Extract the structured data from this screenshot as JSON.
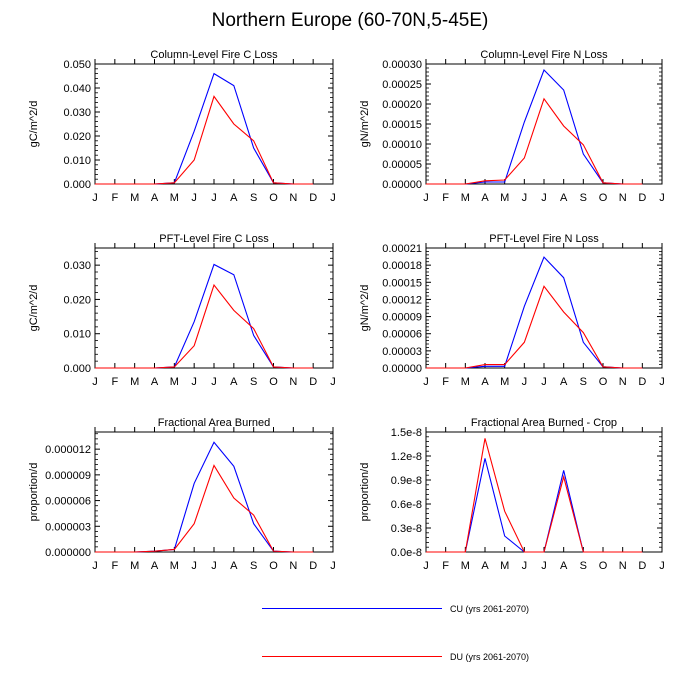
{
  "title": "Northern Europe (60-70N,5-45E)",
  "months": [
    "J",
    "F",
    "M",
    "A",
    "M",
    "J",
    "J",
    "A",
    "S",
    "O",
    "N",
    "D",
    "J"
  ],
  "colors": {
    "cu": "#0000ff",
    "du": "#ff0000"
  },
  "legend": [
    {
      "label": "CU (yrs 2061-2070)",
      "color": "#0000ff"
    },
    {
      "label": "DU (yrs 2061-2070)",
      "color": "#ff0000"
    }
  ],
  "chart_data": [
    {
      "type": "line",
      "title": "Column-Level Fire C Loss",
      "ylabel": "gC/m^2/d",
      "ylim": [
        0,
        0.05
      ],
      "yticks": [
        0,
        0.01,
        0.02,
        0.03,
        0.04,
        0.05
      ],
      "yticklabels": [
        "0.000",
        "0.010",
        "0.020",
        "0.030",
        "0.040",
        "0.050"
      ],
      "series": [
        {
          "name": "CU (yrs 2061-2070)",
          "values": [
            0,
            0,
            0,
            0,
            0.0005,
            0.022,
            0.046,
            0.041,
            0.015,
            0.0005,
            0,
            0
          ]
        },
        {
          "name": "DU (yrs 2061-2070)",
          "values": [
            0,
            0,
            0,
            0,
            0.0005,
            0.01,
            0.0365,
            0.025,
            0.018,
            0.0005,
            0,
            0
          ]
        }
      ]
    },
    {
      "type": "line",
      "title": "Column-Level Fire N Loss",
      "ylabel": "gN/m^2/d",
      "ylim": [
        0,
        0.0003
      ],
      "yticks": [
        0,
        5e-05,
        0.0001,
        0.00015,
        0.0002,
        0.00025,
        0.0003
      ],
      "yticklabels": [
        "0.00000",
        "0.00005",
        "0.00010",
        "0.00015",
        "0.00020",
        "0.00025",
        "0.00030"
      ],
      "series": [
        {
          "name": "CU (yrs 2061-2070)",
          "values": [
            0,
            0,
            0,
            5e-06,
            5e-06,
            0.000155,
            0.000285,
            0.000235,
            7.5e-05,
            3e-06,
            0,
            0
          ]
        },
        {
          "name": "DU (yrs 2061-2070)",
          "values": [
            0,
            0,
            0,
            8e-06,
            1e-05,
            6.5e-05,
            0.000213,
            0.000145,
            9.8e-05,
            3e-06,
            0,
            0
          ]
        }
      ]
    },
    {
      "type": "line",
      "title": "PFT-Level Fire C Loss",
      "ylabel": "gC/m^2/d",
      "ylim": [
        0,
        0.035
      ],
      "yticks": [
        0,
        0.01,
        0.02,
        0.03
      ],
      "yticklabels": [
        "0.000",
        "0.010",
        "0.020",
        "0.030"
      ],
      "series": [
        {
          "name": "CU (yrs 2061-2070)",
          "values": [
            0,
            0,
            0,
            0,
            0.0003,
            0.0135,
            0.0302,
            0.0272,
            0.0095,
            0.0003,
            0,
            0
          ]
        },
        {
          "name": "DU (yrs 2061-2070)",
          "values": [
            0,
            0,
            0,
            0,
            0.0003,
            0.0065,
            0.0242,
            0.0168,
            0.0115,
            0.0003,
            0,
            0
          ]
        }
      ]
    },
    {
      "type": "line",
      "title": "PFT-Level Fire N Loss",
      "ylabel": "gN/m^2/d",
      "ylim": [
        0,
        0.00021
      ],
      "yticks": [
        0,
        3e-05,
        6e-05,
        9e-05,
        0.00012,
        0.00015,
        0.00018,
        0.00021
      ],
      "yticklabels": [
        "0.00000",
        "0.00003",
        "0.00006",
        "0.00009",
        "0.00012",
        "0.00015",
        "0.00018",
        "0.00021"
      ],
      "series": [
        {
          "name": "CU (yrs 2061-2070)",
          "values": [
            0,
            0,
            0,
            3e-06,
            3e-06,
            0.000108,
            0.000194,
            0.000158,
            4.5e-05,
            2e-06,
            0,
            0
          ]
        },
        {
          "name": "DU (yrs 2061-2070)",
          "values": [
            0,
            0,
            0,
            6e-06,
            6e-06,
            4.5e-05,
            0.000143,
            9.8e-05,
            6.2e-05,
            2e-06,
            0,
            0
          ]
        }
      ]
    },
    {
      "type": "line",
      "title": "Fractional Area Burned",
      "ylabel": "proportion/d",
      "ylim": [
        0,
        1.4e-05
      ],
      "yticks": [
        0,
        3e-06,
        6e-06,
        9e-06,
        1.2e-05
      ],
      "yticklabels": [
        "0.000000",
        "0.000003",
        "0.000006",
        "0.000009",
        "0.000012"
      ],
      "series": [
        {
          "name": "CU (yrs 2061-2070)",
          "values": [
            0,
            0,
            0,
            1e-07,
            3e-07,
            8e-06,
            1.28e-05,
            1e-05,
            3.3e-06,
            1e-07,
            0,
            0
          ]
        },
        {
          "name": "DU (yrs 2061-2070)",
          "values": [
            0,
            0,
            0,
            1e-07,
            3e-07,
            3.3e-06,
            1.01e-05,
            6.3e-06,
            4.3e-06,
            1e-07,
            0,
            0
          ]
        }
      ]
    },
    {
      "type": "line",
      "title": "Fractional Area Burned - Crop",
      "ylabel": "proportion/d",
      "ylim": [
        0,
        1.5e-08
      ],
      "yticks": [
        0,
        3e-09,
        6e-09,
        9e-09,
        1.2e-08,
        1.5e-08
      ],
      "yticklabels": [
        "0.0e-8",
        "0.3e-8",
        "0.6e-8",
        "0.9e-8",
        "1.2e-8",
        "1.5e-8"
      ],
      "series": [
        {
          "name": "CU (yrs 2061-2070)",
          "values": [
            0,
            0,
            0,
            1.17e-08,
            2e-09,
            0,
            0,
            1.02e-08,
            0,
            0,
            0,
            0
          ]
        },
        {
          "name": "DU (yrs 2061-2070)",
          "values": [
            0,
            0,
            0,
            1.42e-08,
            5.1e-09,
            0,
            0,
            9.4e-09,
            0,
            0,
            0,
            0
          ]
        }
      ]
    }
  ]
}
